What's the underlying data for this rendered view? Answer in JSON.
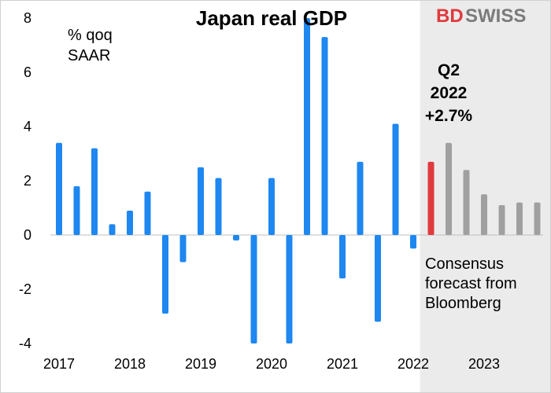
{
  "brand": {
    "logo_text_1": "BD",
    "logo_text_2": "SWISS",
    "color_1": "#e03a3e",
    "color_2": "#7a7a7a"
  },
  "chart_data": {
    "type": "bar",
    "title": "Japan real GDP",
    "unit_label_line1": "% qoq",
    "unit_label_line2": "SAAR",
    "ylim": [
      -4,
      8
    ],
    "yticks": [
      8,
      6,
      4,
      2,
      0,
      -2,
      -4
    ],
    "year_labels": [
      "2017",
      "2018",
      "2019",
      "2020",
      "2021",
      "2022",
      "2023"
    ],
    "grid": false,
    "colors": {
      "actual": "#1e87f0",
      "highlight": "#e03a3e",
      "forecast": "#a0a0a0",
      "forecast_shade": "#ebebeb"
    },
    "series": [
      {
        "values": [
          3.4,
          1.8,
          3.2,
          0.4,
          0.9,
          1.6,
          -2.9,
          -1.0,
          2.5,
          2.1,
          -0.2,
          -4.0,
          2.1,
          -4.0,
          8.0,
          7.3,
          -1.6,
          2.7,
          -3.2,
          4.1,
          -0.5
        ],
        "kind": "actual"
      },
      {
        "values": [
          2.7
        ],
        "kind": "highlight"
      },
      {
        "values": [
          3.4,
          2.4,
          1.5,
          1.1,
          1.2,
          1.2
        ],
        "kind": "forecast"
      }
    ],
    "highlight_annotation": [
      "Q2",
      "2022",
      "+2.7%"
    ],
    "forecast_annotation": [
      "Consensus",
      "forecast from",
      "Bloomberg"
    ]
  }
}
